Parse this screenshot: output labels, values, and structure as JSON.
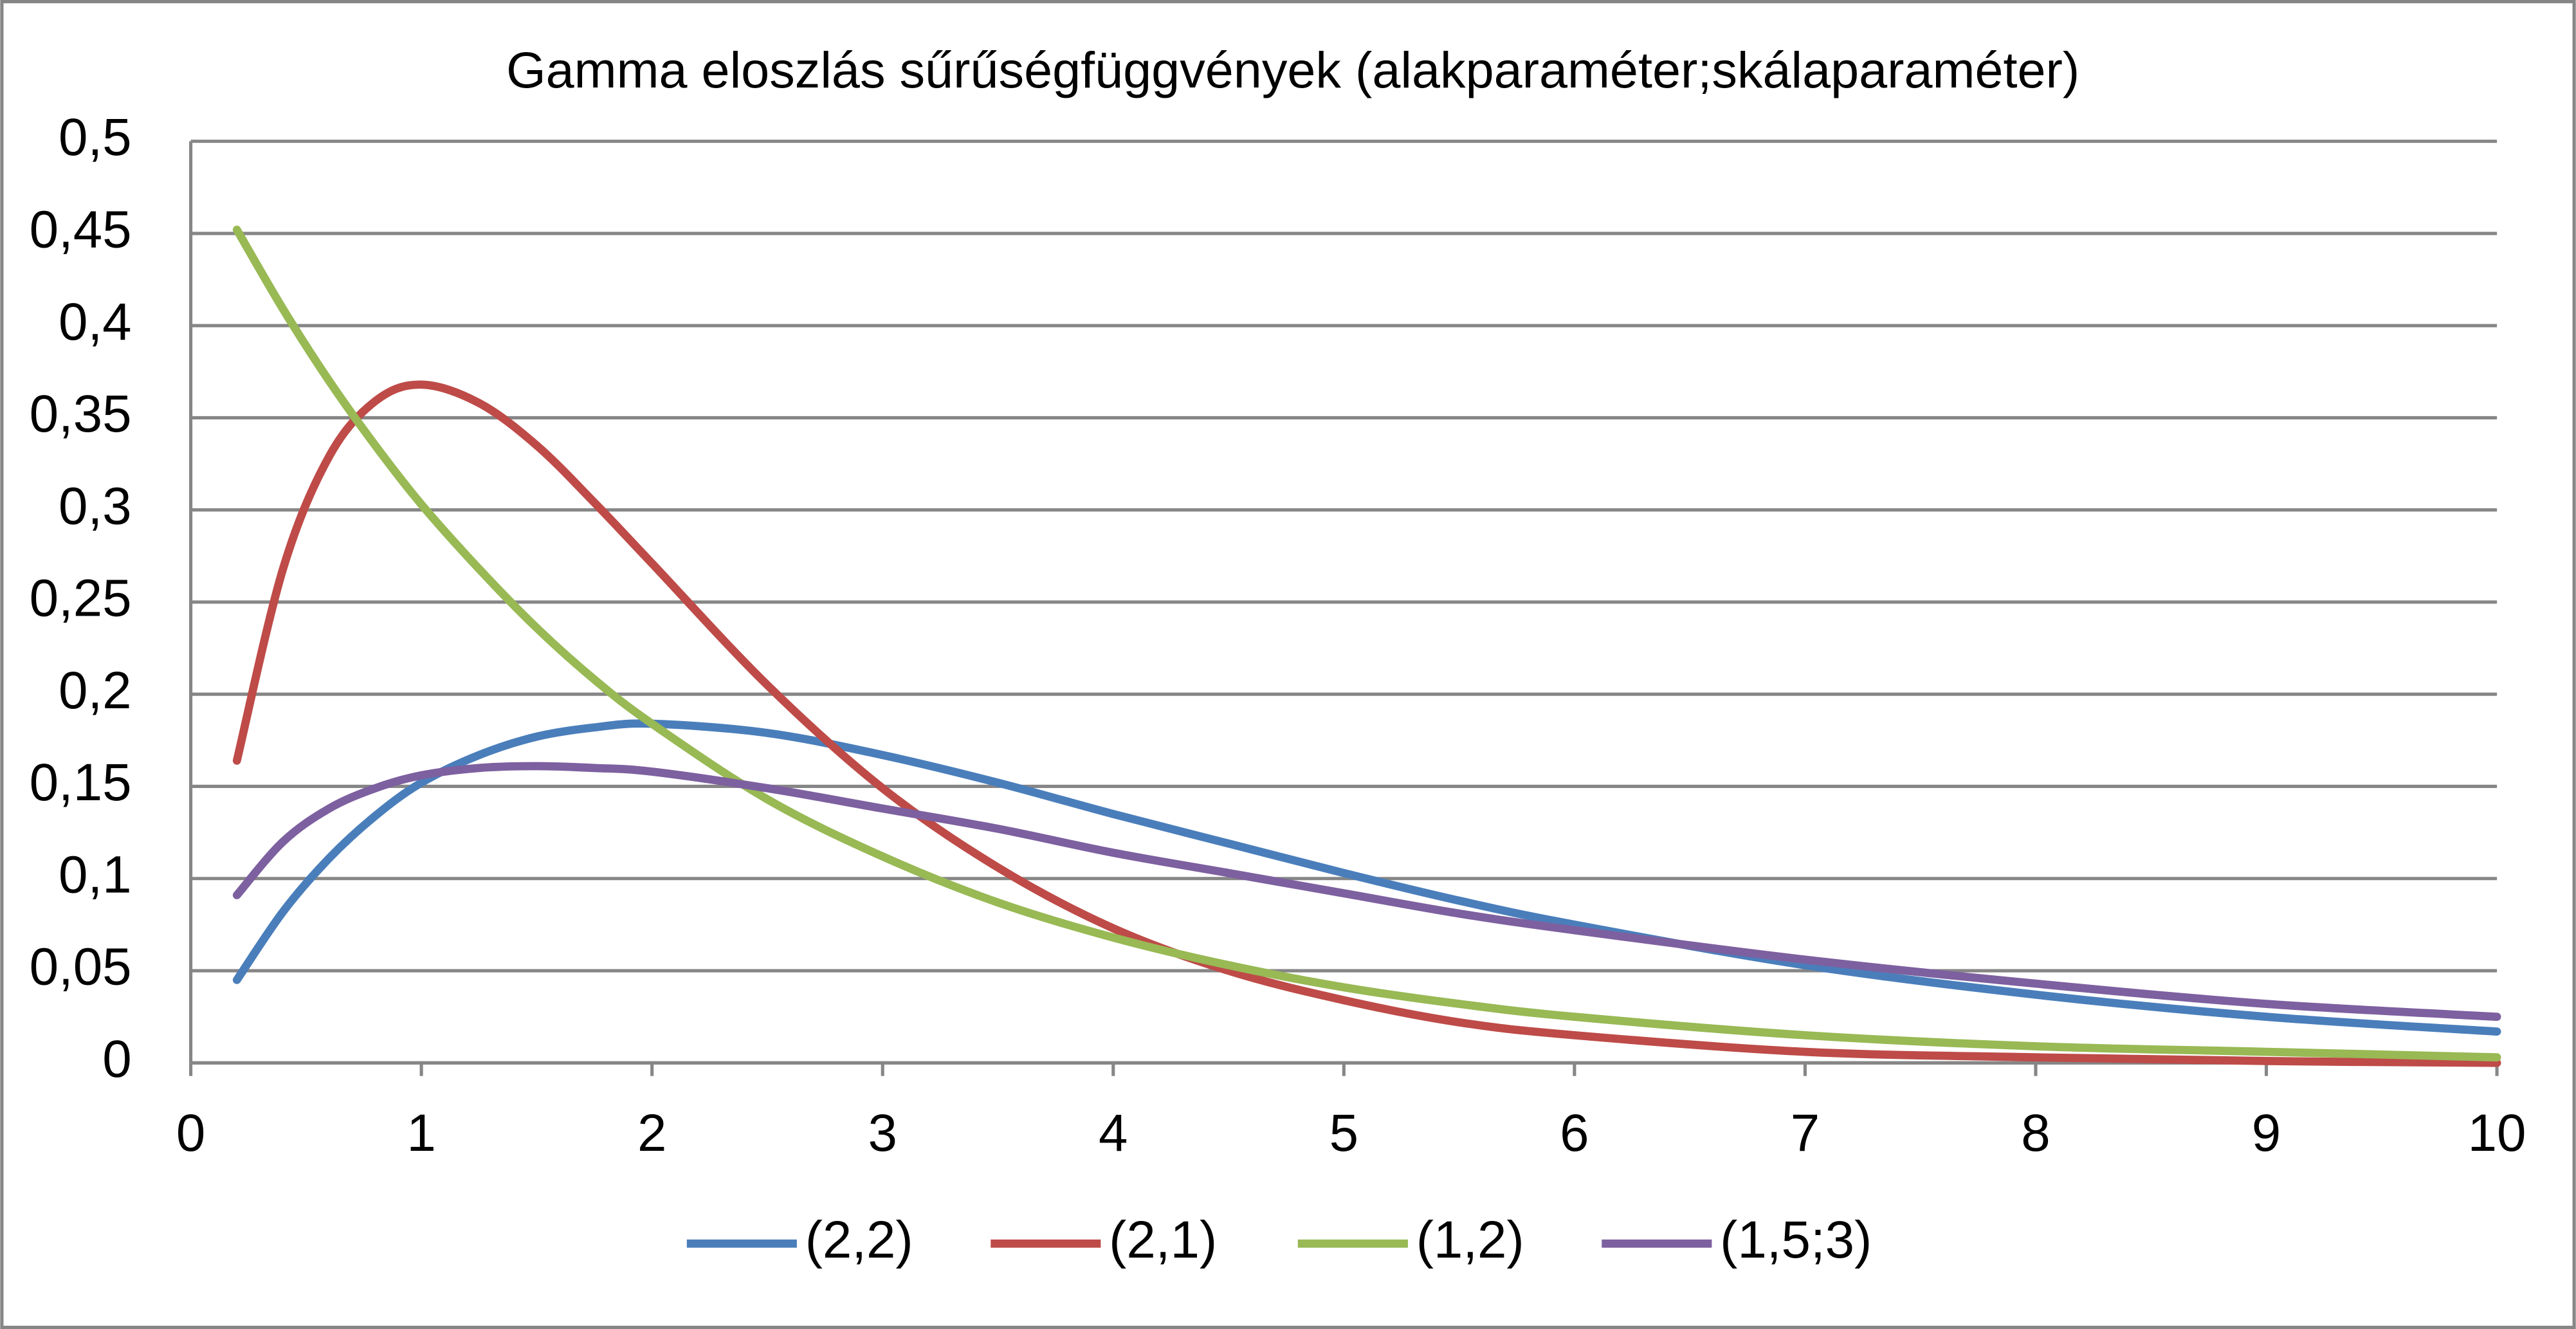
{
  "chart_data": {
    "type": "line",
    "title": "Gamma eloszlás sűrűségfüggvények (alakparaméter;skálaparaméter)",
    "x": [
      0.2,
      0.4,
      0.6,
      0.8,
      1,
      1.25,
      1.5,
      1.75,
      2,
      2.5,
      3,
      3.5,
      4,
      4.5,
      5,
      5.5,
      6,
      7,
      8,
      9,
      10
    ],
    "series": [
      {
        "name": "(2,2)",
        "color": "#4a7ebb",
        "values": [
          0.045,
          0.082,
          0.111,
          0.134,
          0.152,
          0.167,
          0.177,
          0.182,
          0.184,
          0.179,
          0.167,
          0.152,
          0.135,
          0.119,
          0.103,
          0.088,
          0.075,
          0.053,
          0.037,
          0.025,
          0.017
        ]
      },
      {
        "name": "(2,1)",
        "color": "#be4b48",
        "values": [
          0.164,
          0.268,
          0.329,
          0.359,
          0.368,
          0.358,
          0.335,
          0.304,
          0.271,
          0.205,
          0.149,
          0.106,
          0.073,
          0.05,
          0.034,
          0.022,
          0.015,
          0.006,
          0.003,
          0.001,
          0.0
        ]
      },
      {
        "name": "(1,2)",
        "color": "#98b954",
        "values": [
          0.452,
          0.409,
          0.37,
          0.335,
          0.303,
          0.268,
          0.236,
          0.208,
          0.184,
          0.143,
          0.112,
          0.087,
          0.068,
          0.053,
          0.041,
          0.032,
          0.025,
          0.015,
          0.009,
          0.006,
          0.003
        ]
      },
      {
        "name": "(1,5;3)",
        "color": "#7d60a0",
        "values": [
          0.091,
          0.12,
          0.138,
          0.149,
          0.156,
          0.16,
          0.161,
          0.16,
          0.158,
          0.149,
          0.138,
          0.127,
          0.114,
          0.103,
          0.092,
          0.081,
          0.072,
          0.056,
          0.043,
          0.032,
          0.025
        ]
      }
    ],
    "xlim": [
      0,
      10
    ],
    "xticks": [
      0,
      1,
      2,
      3,
      4,
      5,
      6,
      7,
      8,
      9,
      10
    ],
    "ylim": [
      0,
      0.5
    ],
    "yticks": [
      0,
      {
        "value": 0.05,
        "label": "0,05"
      },
      {
        "value": 0.1,
        "label": "0,1"
      },
      {
        "value": 0.15,
        "label": "0,15"
      },
      {
        "value": 0.2,
        "label": "0,2"
      },
      {
        "value": 0.25,
        "label": "0,25"
      },
      {
        "value": 0.3,
        "label": "0,3"
      },
      {
        "value": 0.35,
        "label": "0,35"
      },
      {
        "value": 0.4,
        "label": "0,4"
      },
      {
        "value": 0.45,
        "label": "0,45"
      },
      {
        "value": 0.5,
        "label": "0,5"
      }
    ],
    "grid": true,
    "legend": "bottom"
  }
}
